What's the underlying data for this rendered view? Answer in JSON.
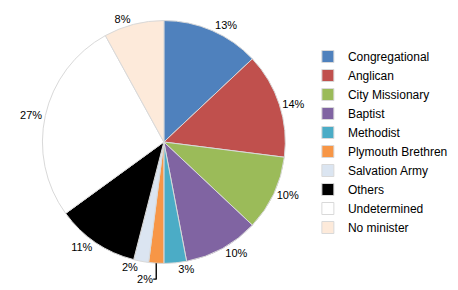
{
  "chart_data": {
    "type": "pie",
    "categories": [
      "Congregational",
      "Anglican",
      "City Missionary",
      "Baptist",
      "Methodist",
      "Plymouth Brethren",
      "Salvation Army",
      "Others",
      "Undetermined",
      "No minister"
    ],
    "values": [
      13,
      14,
      10,
      10,
      3,
      2,
      2,
      11,
      27,
      8
    ],
    "value_labels": [
      "13%",
      "14%",
      "10%",
      "10%",
      "3%",
      "2%",
      "2%",
      "11%",
      "27%",
      "8%"
    ],
    "colors": [
      "#4f81bd",
      "#c0504d",
      "#9bbb59",
      "#8064a2",
      "#4bacc6",
      "#f79646",
      "#dbe5f1",
      "#000000",
      "#ffffff",
      "#fdeada"
    ],
    "data_labels": true,
    "legend": "right"
  }
}
